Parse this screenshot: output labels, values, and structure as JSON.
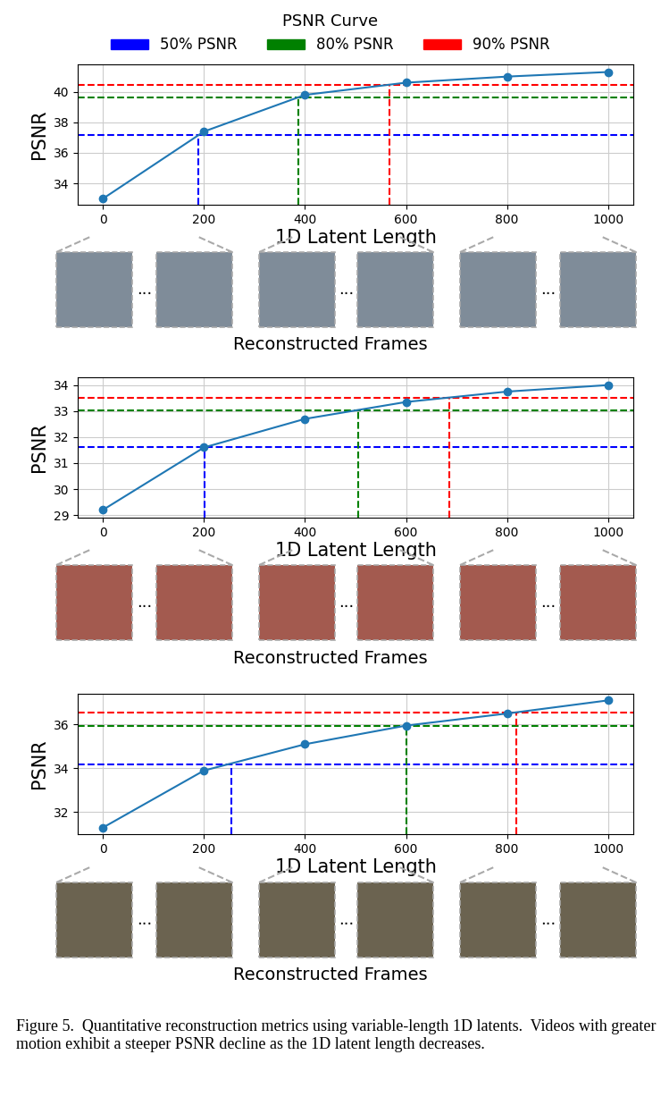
{
  "title": "PSNR Curve",
  "legend": "upper center",
  "frames": {
    "label": "Reconstructed Frames",
    "gap": "..."
  },
  "caption": "Figure 5.  Quantitative reconstruction metrics using variable-length 1D latents.  Videos with greater motion exhibit a steeper PSNR decline as the 1D latent length decreases.",
  "chart_data": [
    {
      "type": "line",
      "x": [
        0,
        200,
        400,
        600,
        800,
        1000
      ],
      "values": [
        33.0,
        37.4,
        39.8,
        40.6,
        41.0,
        41.3
      ],
      "color": "#1f77b4",
      "marker": "o",
      "xlabel": "1D Latent Length",
      "ylabel": "PSNR",
      "xlim": [
        -50,
        1050
      ],
      "ylim": [
        32.6,
        41.8
      ],
      "xticks": [
        0,
        200,
        400,
        600,
        800,
        1000
      ],
      "yticks": [
        34,
        36,
        38,
        40
      ],
      "grid": true,
      "thresholds": [
        {
          "name": "50% PSNR",
          "color": "#0000ff",
          "y": 37.15,
          "x": 189
        },
        {
          "name": "80% PSNR",
          "color": "#008000",
          "y": 39.64,
          "x": 387
        },
        {
          "name": "90% PSNR",
          "color": "#ff0000",
          "y": 40.47,
          "x": 567
        }
      ]
    },
    {
      "type": "line",
      "x": [
        0,
        200,
        400,
        600,
        800,
        1000
      ],
      "values": [
        29.2,
        31.6,
        32.7,
        33.35,
        33.75,
        34.0
      ],
      "color": "#1f77b4",
      "marker": "o",
      "xlabel": "1D Latent Length",
      "ylabel": "PSNR",
      "xlim": [
        -50,
        1050
      ],
      "ylim": [
        28.9,
        34.3
      ],
      "xticks": [
        0,
        200,
        400,
        600,
        800,
        1000
      ],
      "yticks": [
        29,
        30,
        31,
        32,
        33,
        34
      ],
      "grid": true,
      "thresholds": [
        {
          "name": "50% PSNR",
          "color": "#0000ff",
          "y": 31.6,
          "x": 202
        },
        {
          "name": "80% PSNR",
          "color": "#008000",
          "y": 33.04,
          "x": 505
        },
        {
          "name": "90% PSNR",
          "color": "#ff0000",
          "y": 33.52,
          "x": 685
        }
      ]
    },
    {
      "type": "line",
      "x": [
        0,
        200,
        400,
        600,
        800,
        1000
      ],
      "values": [
        31.3,
        33.9,
        35.1,
        35.95,
        36.5,
        37.1
      ],
      "color": "#1f77b4",
      "marker": "o",
      "xlabel": "1D Latent Length",
      "ylabel": "PSNR",
      "xlim": [
        -50,
        1050
      ],
      "ylim": [
        31.0,
        37.4
      ],
      "xticks": [
        0,
        200,
        400,
        600,
        800,
        1000
      ],
      "yticks": [
        32,
        34,
        36
      ],
      "grid": true,
      "thresholds": [
        {
          "name": "50% PSNR",
          "color": "#0000ff",
          "y": 34.2,
          "x": 255
        },
        {
          "name": "80% PSNR",
          "color": "#008000",
          "y": 35.94,
          "x": 600
        },
        {
          "name": "90% PSNR",
          "color": "#ff0000",
          "y": 36.55,
          "x": 818
        }
      ]
    }
  ]
}
